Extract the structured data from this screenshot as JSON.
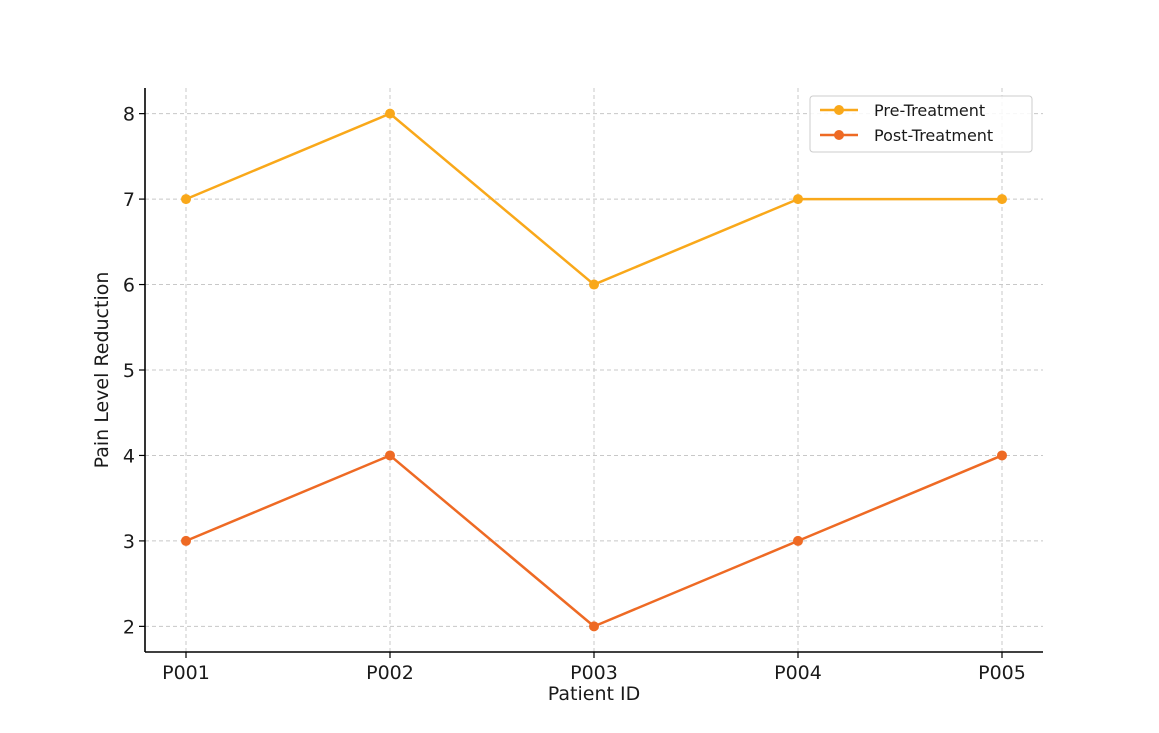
{
  "chart_data": {
    "type": "line",
    "title": "",
    "xlabel": "Patient ID",
    "ylabel": "Pain Level Reduction",
    "categories": [
      "P001",
      "P002",
      "P003",
      "P004",
      "P005"
    ],
    "series": [
      {
        "name": "Pre-Treatment",
        "values": [
          7,
          8,
          6,
          7,
          7
        ],
        "color": "#F9A81A"
      },
      {
        "name": "Post-Treatment",
        "values": [
          3,
          4,
          2,
          3,
          4
        ],
        "color": "#EE6A24"
      }
    ],
    "ylim": [
      1.7,
      8.3
    ],
    "yticks": [
      2,
      3,
      4,
      5,
      6,
      7,
      8
    ],
    "grid": true,
    "legend_position": "top-right"
  }
}
